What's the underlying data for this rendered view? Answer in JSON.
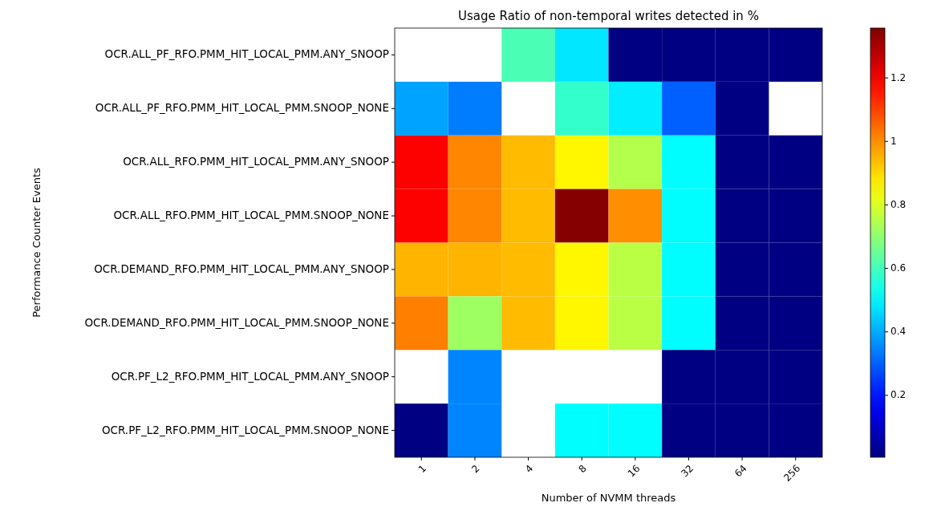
{
  "chart_data": {
    "type": "heatmap",
    "title": "Usage Ratio of non-temporal writes  detected in %",
    "xlabel": "Number of NVMM threads",
    "ylabel": "Performance Counter Events",
    "categories": [
      "1",
      "2",
      "4",
      "8",
      "16",
      "32",
      "64",
      "256"
    ],
    "y_categories": [
      "OCR.ALL_PF_RFO.PMM_HIT_LOCAL_PMM.ANY_SNOOP",
      "OCR.ALL_PF_RFO.PMM_HIT_LOCAL_PMM.SNOOP_NONE",
      "OCR.ALL_RFO.PMM_HIT_LOCAL_PMM.ANY_SNOOP",
      "OCR.ALL_RFO.PMM_HIT_LOCAL_PMM.SNOOP_NONE",
      "OCR.DEMAND_RFO.PMM_HIT_LOCAL_PMM.ANY_SNOOP",
      "OCR.DEMAND_RFO.PMM_HIT_LOCAL_PMM.SNOOP_NONE",
      "OCR.PF_L2_RFO.PMM_HIT_LOCAL_PMM.ANY_SNOOP",
      "OCR.PF_L2_RFO.PMM_HIT_LOCAL_PMM.SNOOP_NONE"
    ],
    "cells": [
      [
        null,
        null,
        0.61,
        0.48,
        0.01,
        0.01,
        0.01,
        0.01
      ],
      [
        0.39,
        0.34,
        null,
        0.58,
        0.49,
        0.3,
        0.01,
        null
      ],
      [
        1.19,
        1.01,
        0.94,
        0.86,
        0.75,
        0.51,
        0.01,
        0.01
      ],
      [
        1.19,
        1.01,
        0.94,
        1.35,
        1.0,
        0.51,
        0.01,
        0.01
      ],
      [
        0.95,
        0.95,
        0.94,
        0.86,
        0.76,
        0.51,
        0.01,
        0.01
      ],
      [
        1.02,
        0.72,
        0.94,
        0.86,
        0.76,
        0.51,
        0.01,
        0.01
      ],
      [
        null,
        0.35,
        null,
        null,
        null,
        0.01,
        0.01,
        0.01
      ],
      [
        0.01,
        0.35,
        null,
        0.51,
        0.51,
        0.01,
        0.01,
        0.01
      ]
    ],
    "clim": [
      0.005,
      1.357
    ],
    "cticks": [
      0.2,
      0.4,
      0.6,
      0.8,
      1.0,
      1.2
    ]
  }
}
